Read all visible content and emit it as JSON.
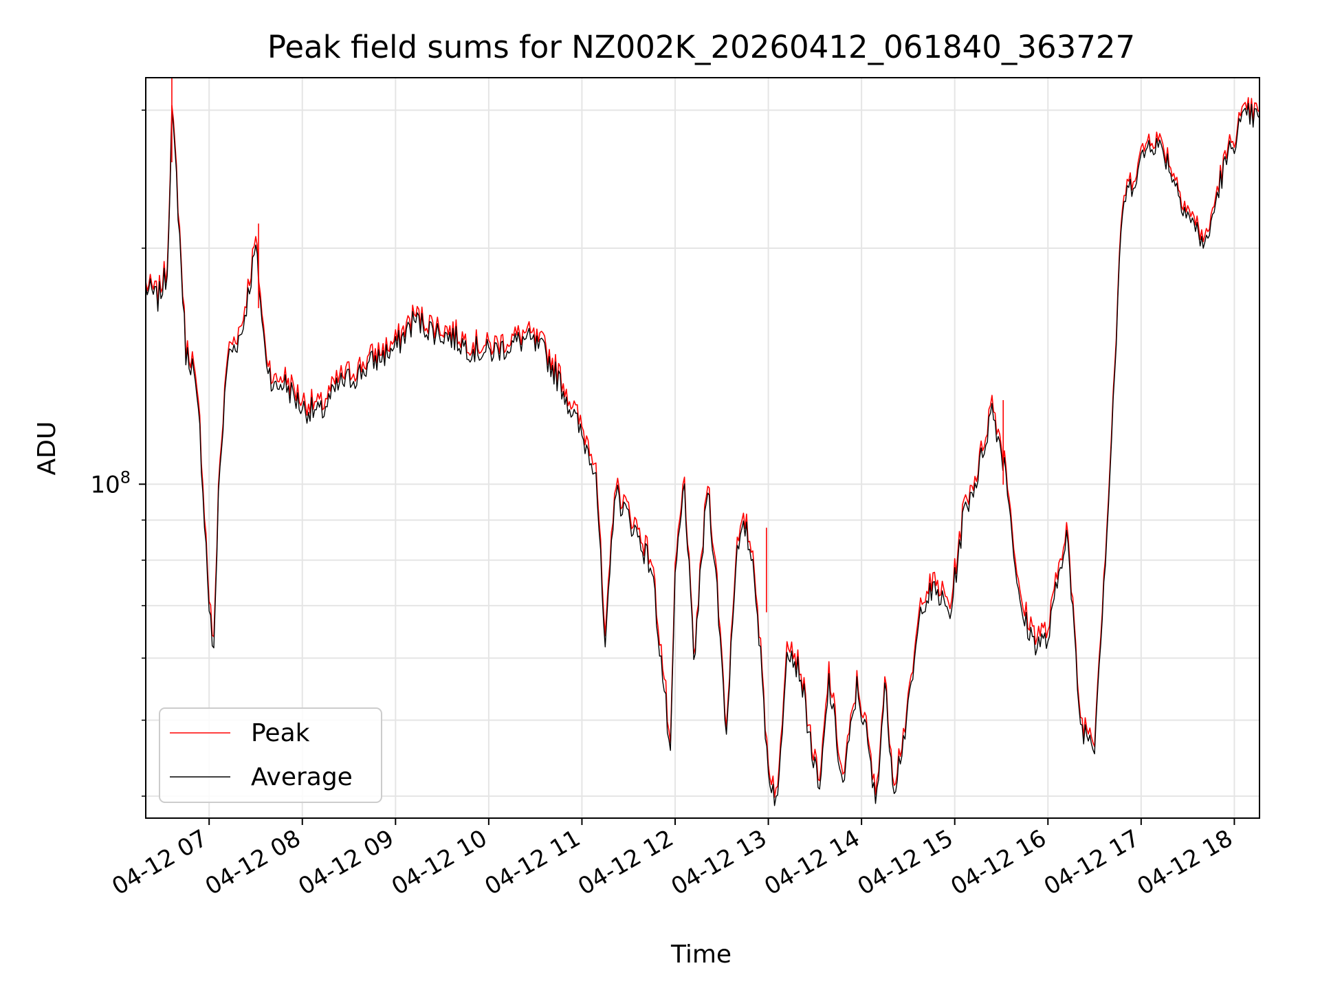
{
  "chart_data": {
    "type": "line",
    "title": "Peak field sums for NZ002K_20260412_061840_363727",
    "xlabel": "Time",
    "ylabel": "ADU",
    "yscale": "log",
    "ylim": [
      37500000,
      330000000
    ],
    "xlim_hours": [
      6.32,
      18.27
    ],
    "grid": true,
    "legend_position": "lower-left",
    "x_tick_labels": [
      "04-12 07",
      "04-12 08",
      "04-12 09",
      "04-12 10",
      "04-12 11",
      "04-12 12",
      "04-12 13",
      "04-12 14",
      "04-12 15",
      "04-12 16",
      "04-12 17",
      "04-12 18"
    ],
    "x_tick_hours": [
      7,
      8,
      9,
      10,
      11,
      12,
      13,
      14,
      15,
      16,
      17,
      18
    ],
    "y_major_ticks": [
      {
        "value": 100000000,
        "base": "10",
        "exp": "8"
      }
    ],
    "y_minor_ticks": [
      40000000,
      50000000,
      60000000,
      70000000,
      80000000,
      90000000,
      200000000,
      300000000
    ],
    "series": [
      {
        "name": "Peak",
        "color": "#ff0000",
        "x_hours": [
          6.32,
          6.45,
          6.55,
          6.6,
          6.65,
          6.75,
          6.82,
          6.9,
          7.0,
          7.05,
          7.1,
          7.2,
          7.35,
          7.5,
          7.6,
          7.7,
          7.8,
          8.0,
          8.2,
          8.4,
          8.6,
          8.75,
          9.0,
          9.2,
          9.4,
          9.6,
          9.8,
          10.0,
          10.2,
          10.4,
          10.6,
          10.8,
          11.0,
          11.15,
          11.25,
          11.35,
          11.45,
          11.6,
          11.75,
          11.9,
          11.95,
          12.0,
          12.1,
          12.2,
          12.35,
          12.45,
          12.55,
          12.65,
          12.75,
          12.85,
          13.0,
          13.1,
          13.2,
          13.35,
          13.45,
          13.55,
          13.65,
          13.8,
          13.95,
          14.05,
          14.15,
          14.25,
          14.35,
          14.5,
          14.65,
          14.8,
          14.95,
          15.1,
          15.25,
          15.4,
          15.55,
          15.7,
          15.85,
          16.0,
          16.2,
          16.35,
          16.5,
          16.65,
          16.8,
          16.95,
          17.1,
          17.25,
          17.4,
          17.55,
          17.7,
          17.85,
          17.95,
          18.05,
          18.15,
          18.27
        ],
        "values": [
          180000000,
          175000000,
          190000000,
          300000000,
          250000000,
          150000000,
          145000000,
          120000000,
          72000000,
          62000000,
          100000000,
          148000000,
          160000000,
          205000000,
          150000000,
          135000000,
          138000000,
          128000000,
          126000000,
          137000000,
          141000000,
          146000000,
          152000000,
          165000000,
          160000000,
          157000000,
          152000000,
          150000000,
          153000000,
          156000000,
          150000000,
          135000000,
          118000000,
          108000000,
          62000000,
          100000000,
          95000000,
          88000000,
          80000000,
          54000000,
          45000000,
          78000000,
          102000000,
          60000000,
          102000000,
          75000000,
          49000000,
          82000000,
          90000000,
          80000000,
          44000000,
          40000000,
          65000000,
          58000000,
          48000000,
          41000000,
          58000000,
          42000000,
          56000000,
          49000000,
          40000000,
          56000000,
          42000000,
          52000000,
          73000000,
          75000000,
          70000000,
          94000000,
          105000000,
          128000000,
          106000000,
          71000000,
          65000000,
          65000000,
          90000000,
          50000000,
          48000000,
          97000000,
          230000000,
          255000000,
          280000000,
          270000000,
          240000000,
          219000000,
          205000000,
          248000000,
          270000000,
          290000000,
          300000000,
          298000000
        ]
      },
      {
        "name": "Average",
        "color": "#000000",
        "x_hours": [
          6.32,
          6.45,
          6.55,
          6.6,
          6.65,
          6.75,
          6.82,
          6.9,
          7.0,
          7.05,
          7.1,
          7.2,
          7.35,
          7.5,
          7.6,
          7.7,
          7.8,
          8.0,
          8.2,
          8.4,
          8.6,
          8.75,
          9.0,
          9.2,
          9.4,
          9.6,
          9.8,
          10.0,
          10.2,
          10.4,
          10.6,
          10.8,
          11.0,
          11.15,
          11.25,
          11.35,
          11.45,
          11.6,
          11.75,
          11.9,
          11.95,
          12.0,
          12.1,
          12.2,
          12.35,
          12.45,
          12.55,
          12.65,
          12.75,
          12.85,
          13.0,
          13.1,
          13.2,
          13.35,
          13.45,
          13.55,
          13.65,
          13.8,
          13.95,
          14.05,
          14.15,
          14.25,
          14.35,
          14.5,
          14.65,
          14.8,
          14.95,
          15.1,
          15.25,
          15.4,
          15.55,
          15.7,
          15.85,
          16.0,
          16.2,
          16.35,
          16.5,
          16.65,
          16.8,
          16.95,
          17.1,
          17.25,
          17.4,
          17.55,
          17.7,
          17.85,
          17.95,
          18.05,
          18.15,
          18.27
        ],
        "values": [
          178000000,
          172000000,
          186000000,
          295000000,
          245000000,
          147000000,
          142000000,
          117000000,
          70000000,
          60000000,
          98000000,
          145000000,
          156000000,
          200000000,
          147000000,
          132000000,
          135000000,
          125000000,
          123000000,
          134000000,
          138000000,
          143000000,
          149000000,
          162000000,
          157000000,
          154000000,
          149000000,
          147000000,
          150000000,
          153000000,
          147000000,
          132000000,
          115000000,
          105000000,
          60000000,
          98000000,
          93000000,
          86000000,
          78000000,
          52000000,
          44000000,
          76000000,
          100000000,
          59000000,
          100000000,
          73000000,
          48000000,
          80000000,
          88000000,
          78000000,
          43000000,
          39000000,
          63000000,
          57000000,
          47000000,
          40000000,
          56000000,
          41000000,
          55000000,
          48000000,
          39000000,
          55000000,
          41000000,
          51000000,
          71000000,
          73000000,
          68000000,
          92000000,
          103000000,
          125000000,
          104000000,
          69000000,
          63000000,
          63000000,
          88000000,
          49000000,
          47000000,
          95000000,
          226000000,
          250000000,
          275000000,
          265000000,
          236000000,
          215000000,
          201000000,
          244000000,
          265000000,
          285000000,
          295000000,
          293000000
        ]
      }
    ],
    "spikes": [
      {
        "hour": 6.6,
        "value": 330000000
      },
      {
        "hour": 7.53,
        "value": 215000000
      },
      {
        "hour": 12.98,
        "value": 88000000
      },
      {
        "hour": 15.52,
        "value": 128000000
      }
    ]
  }
}
